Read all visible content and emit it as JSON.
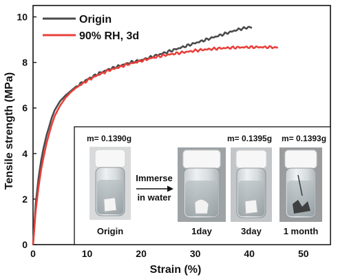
{
  "chart_data": {
    "type": "line",
    "xlabel": "Strain (%)",
    "ylabel": "Tensile strength (MPa)",
    "xlim": [
      0,
      55
    ],
    "ylim": [
      0,
      10.5
    ],
    "xticks": [
      0,
      10,
      20,
      30,
      40,
      50
    ],
    "yticks": [
      0,
      2,
      4,
      6,
      8,
      10
    ],
    "grid": false,
    "legend_position": "top-left",
    "series": [
      {
        "name": "Origin",
        "color": "#4a4a4a",
        "x": [
          0,
          0.5,
          1,
          1.5,
          2,
          2.5,
          3,
          3.5,
          4,
          5,
          6,
          7,
          8,
          9,
          10,
          12,
          14,
          16,
          18,
          20,
          22,
          24,
          26,
          28,
          30,
          32,
          34,
          36,
          38,
          39,
          40,
          40.5
        ],
        "y": [
          0,
          1.8,
          2.9,
          3.7,
          4.3,
          4.8,
          5.2,
          5.6,
          5.9,
          6.3,
          6.55,
          6.75,
          6.95,
          7.1,
          7.25,
          7.5,
          7.7,
          7.85,
          8.0,
          8.1,
          8.25,
          8.4,
          8.55,
          8.7,
          8.85,
          9.0,
          9.15,
          9.3,
          9.45,
          9.5,
          9.55,
          9.53
        ]
      },
      {
        "name": "90% RH, 3d",
        "color": "#e8403a",
        "x": [
          0,
          0.5,
          1,
          1.5,
          2,
          2.5,
          3,
          3.5,
          4,
          5,
          6,
          7,
          8,
          9,
          10,
          12,
          14,
          16,
          18,
          20,
          22,
          24,
          26,
          28,
          30,
          32,
          34,
          36,
          38,
          40,
          42,
          44,
          45.3
        ],
        "y": [
          0,
          1.5,
          2.5,
          3.3,
          3.9,
          4.45,
          4.9,
          5.3,
          5.65,
          6.1,
          6.45,
          6.7,
          6.9,
          7.05,
          7.2,
          7.45,
          7.65,
          7.8,
          7.95,
          8.07,
          8.2,
          8.3,
          8.38,
          8.45,
          8.52,
          8.57,
          8.61,
          8.64,
          8.66,
          8.67,
          8.67,
          8.67,
          8.66
        ]
      }
    ],
    "inset": {
      "annotations": {
        "m_origin": "m= 0.1390g",
        "m_3day": "m= 0.1395g",
        "m_1month": "m= 0.1393g",
        "immerse_line1": "Immerse",
        "immerse_line2": "in water"
      },
      "photo_labels": [
        "Origin",
        "1day",
        "3day",
        "1 month"
      ]
    }
  }
}
